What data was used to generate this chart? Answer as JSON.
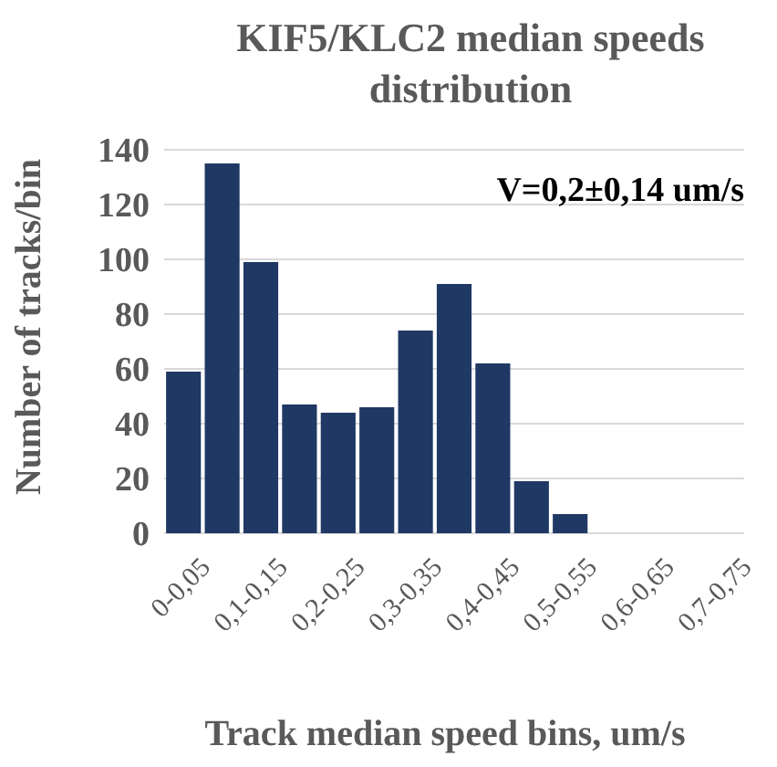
{
  "chart_data": {
    "type": "bar",
    "title": "KIF5/KLC2 median speeds distribution",
    "xlabel": "Track median speed bins, um/s",
    "ylabel": "Number of tracks/bin",
    "categories": [
      "0-0,05",
      null,
      "0,1-0,15",
      null,
      "0,2-0,25",
      null,
      "0,3-0,35",
      null,
      "0,4-0,45",
      null,
      "0,5-0,55",
      null,
      "0,6-0,65",
      null,
      "0,7-0,75"
    ],
    "values": [
      59,
      135,
      99,
      47,
      44,
      46,
      74,
      91,
      62,
      19,
      7,
      0,
      0,
      0,
      0
    ],
    "color": "#203864",
    "ylim": [
      0,
      140
    ],
    "yticks": [
      0,
      20,
      40,
      60,
      80,
      100,
      120,
      140
    ],
    "grid": "y",
    "annotations": [
      "V=0,2±0,14 um/s"
    ]
  }
}
